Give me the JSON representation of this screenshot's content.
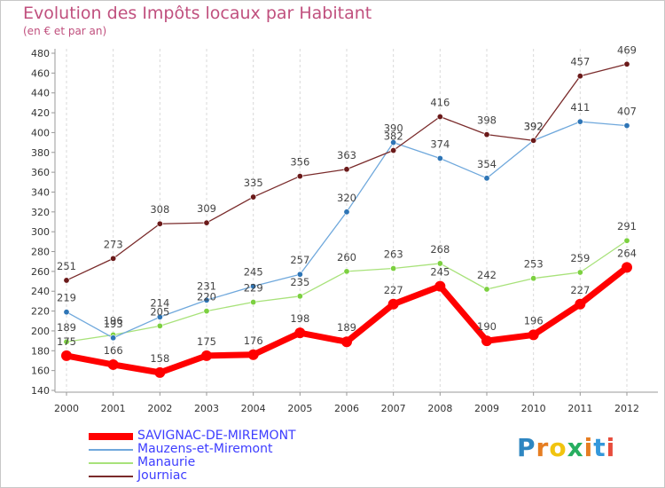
{
  "title": "Evolution des Impôts locaux par Habitant",
  "subtitle": "(en € et par an)",
  "logo": {
    "letters": [
      "P",
      "r",
      "o",
      "x",
      "i",
      "t",
      "i"
    ],
    "colors": [
      "#2e86c1",
      "#e67e22",
      "#f1c40f",
      "#27ae60",
      "#e67e22",
      "#3498db",
      "#e74c3c"
    ]
  },
  "chart_data": {
    "type": "line",
    "x": [
      "2000",
      "2001",
      "2002",
      "2003",
      "2004",
      "2005",
      "2006",
      "2007",
      "2008",
      "2009",
      "2010",
      "2011",
      "2012"
    ],
    "ylim": [
      140,
      480
    ],
    "yticks": [
      "140",
      "160",
      "180",
      "200",
      "220",
      "240",
      "260",
      "280",
      "300",
      "320",
      "340",
      "360",
      "380",
      "400",
      "420",
      "440",
      "460",
      "480"
    ],
    "grid": "vertical-dashed",
    "legend_position": "bottom-left",
    "series": [
      {
        "name": "SAVIGNAC-DE-MIREMONT",
        "color": "#ff0000",
        "point_color": "#ff0000",
        "legend_color": "#3d3dff",
        "values": [
          175,
          166,
          158,
          175,
          176,
          198,
          189,
          227,
          245,
          190,
          196,
          227,
          264
        ],
        "labels": [
          "175",
          "166",
          "158",
          "175",
          "176",
          "198",
          "189",
          "227",
          "245",
          "190",
          "196",
          "227",
          "264"
        ]
      },
      {
        "name": "Mauzens-et-Miremont",
        "color": "#6fa8dc",
        "point_color": "#2e75b6",
        "legend_color": "#3d3dff",
        "values": [
          219,
          193,
          214,
          231,
          245,
          257,
          320,
          390,
          374,
          354,
          392,
          411,
          407
        ],
        "labels": [
          "219",
          "193",
          "214",
          "231",
          "245",
          "257",
          "320",
          "390",
          "374",
          "354",
          "392",
          "411",
          "407"
        ]
      },
      {
        "name": "Manaurie",
        "color": "#a8e27a",
        "point_color": "#7cd040",
        "legend_color": "#3d3dff",
        "values": [
          189,
          196,
          205,
          220,
          229,
          235,
          260,
          263,
          268,
          242,
          253,
          259,
          291
        ],
        "labels": [
          "189",
          "196",
          "205",
          "220",
          "229",
          "235",
          "260",
          "263",
          "268",
          "242",
          "253",
          "259",
          "291"
        ]
      },
      {
        "name": "Journiac",
        "color": "#7a2b2b",
        "point_color": "#6b1a1a",
        "legend_color": "#3d3dff",
        "values": [
          251,
          273,
          308,
          309,
          335,
          356,
          363,
          382,
          416,
          398,
          392,
          457,
          469
        ],
        "labels": [
          "251",
          "273",
          "308",
          "309",
          "335",
          "356",
          "363",
          "382",
          "416",
          "398",
          "392",
          "457",
          "469"
        ]
      }
    ]
  }
}
